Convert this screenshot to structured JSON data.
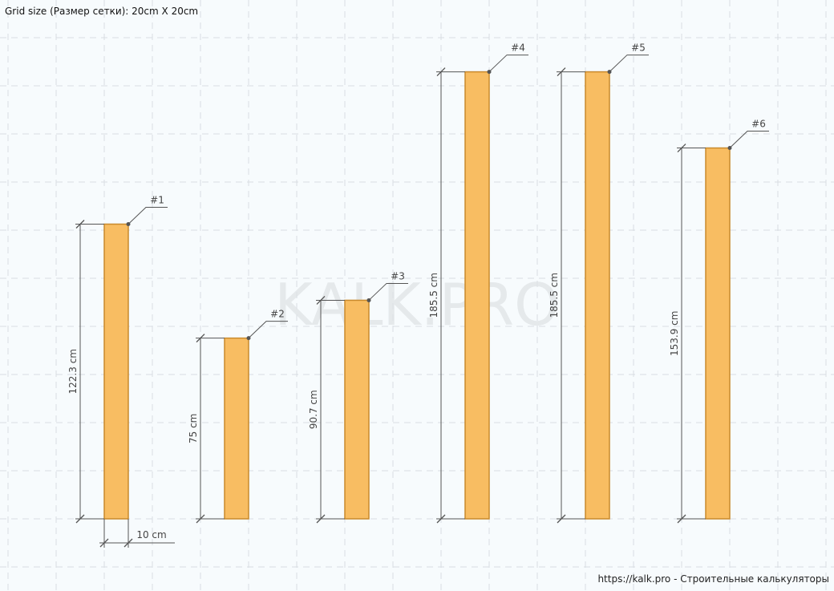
{
  "grid_caption": "Grid size (Размер сетки): 20cm X 20cm",
  "watermark": "KALK.PRO",
  "footer": "https://kalk.pro - Строительные калькуляторы",
  "colors": {
    "board_fill": "#f8bd62",
    "board_stroke": "#c98a2c",
    "dimension_line": "#555555",
    "grid_line": "#d9dee2",
    "background": "#f7fbfd"
  },
  "width_label": "10 cm",
  "boards": [
    {
      "tag": "#1",
      "length_cm": 122.3,
      "length_label": "122.3 cm"
    },
    {
      "tag": "#2",
      "length_cm": 75,
      "length_label": "75 cm"
    },
    {
      "tag": "#3",
      "length_cm": 90.7,
      "length_label": "90.7 cm"
    },
    {
      "tag": "#4",
      "length_cm": 185.5,
      "length_label": "185.5 cm"
    },
    {
      "tag": "#5",
      "length_cm": 185.5,
      "length_label": "185.5 cm"
    },
    {
      "tag": "#6",
      "length_cm": 153.9,
      "length_label": "153.9 cm"
    }
  ]
}
